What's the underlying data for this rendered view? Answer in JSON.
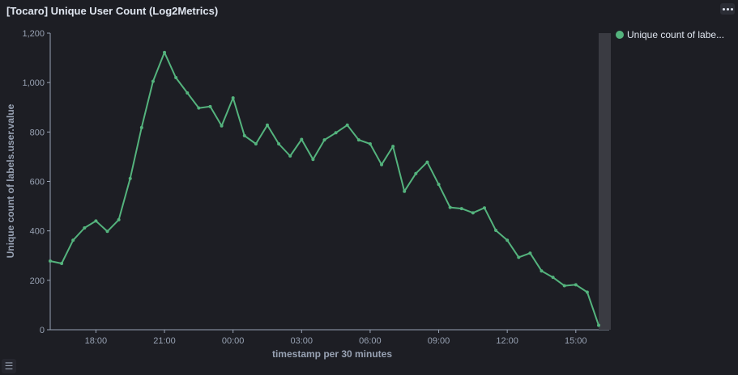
{
  "panel": {
    "title": "[Tocaro] Unique User Count (Log2Metrics)",
    "legend_toggle_icon": "list-icon",
    "options_icon": "ellipsis-icon"
  },
  "colors": {
    "line": "#54b37d",
    "background": "#1d1e24",
    "axis": "#98a2b3",
    "scrollbar": "#3a3b42"
  },
  "chart_data": {
    "type": "line",
    "title": "[Tocaro] Unique User Count (Log2Metrics)",
    "xlabel": "timestamp per 30 minutes",
    "ylabel": "Unique count of labels.user.value",
    "ylim": [
      0,
      1200
    ],
    "yticks": [
      "0",
      "200",
      "400",
      "600",
      "800",
      "1,000",
      "1,200"
    ],
    "xtick_labels": [
      "18:00",
      "21:00",
      "00:00",
      "03:00",
      "06:00",
      "09:00",
      "12:00",
      "15:00"
    ],
    "x_start": "16:00",
    "x_interval_minutes": 30,
    "legend_position": "top-right",
    "grid": false,
    "series": [
      {
        "name": "Unique count of labe...",
        "values": [
          278,
          268,
          362,
          412,
          440,
          398,
          445,
          612,
          818,
          1005,
          1122,
          1020,
          958,
          897,
          903,
          825,
          938,
          785,
          752,
          828,
          752,
          703,
          770,
          689,
          768,
          797,
          828,
          768,
          752,
          668,
          742,
          560,
          632,
          678,
          588,
          495,
          490,
          473,
          493,
          402,
          362,
          293,
          310,
          238,
          212,
          178,
          182,
          152,
          18
        ]
      }
    ]
  }
}
